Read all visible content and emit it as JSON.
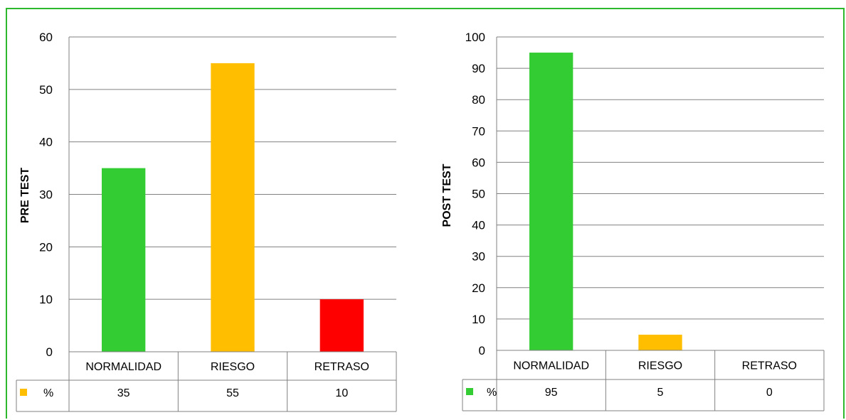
{
  "colors": {
    "frame": "#2eb82e",
    "normal": "#33cc33",
    "risk": "#ffbf00",
    "delay": "#ff0000",
    "grid": "#808080"
  },
  "chart_data": [
    {
      "type": "bar",
      "ylabel": "PRE TEST",
      "categories": [
        "NORMALIDAD",
        "RIESGO",
        "RETRASO"
      ],
      "series": [
        {
          "name": "%",
          "values": [
            35,
            55,
            10
          ]
        }
      ],
      "bar_colors": [
        "#33cc33",
        "#ffbf00",
        "#ff0000"
      ],
      "legend_key_color": "#ffbf00",
      "ylim": [
        0,
        60
      ],
      "yticks": [
        0,
        10,
        20,
        30,
        40,
        50,
        60
      ],
      "grid": true,
      "data_table": true
    },
    {
      "type": "bar",
      "ylabel": "POST TEST",
      "categories": [
        "NORMALIDAD",
        "RIESGO",
        "RETRASO"
      ],
      "series": [
        {
          "name": "%",
          "values": [
            95,
            5,
            0
          ]
        }
      ],
      "bar_colors": [
        "#33cc33",
        "#ffbf00",
        "#ff0000"
      ],
      "legend_key_color": "#33cc33",
      "ylim": [
        0,
        100
      ],
      "yticks": [
        0,
        10,
        20,
        30,
        40,
        50,
        60,
        70,
        80,
        90,
        100
      ],
      "grid": true,
      "data_table": true
    }
  ]
}
